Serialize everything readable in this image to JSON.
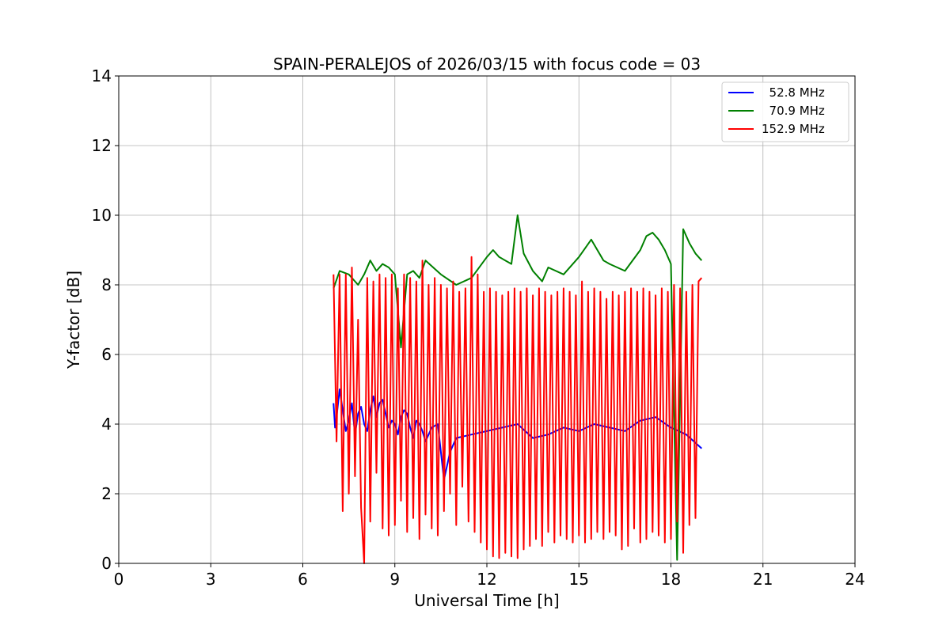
{
  "chart_data": {
    "type": "line",
    "title": "SPAIN-PERALEJOS of 2026/03/15 with focus code = 03",
    "xlabel": "Universal Time [h]",
    "ylabel": "Y-factor [dB]",
    "xlim": [
      0,
      24
    ],
    "ylim": [
      0,
      14
    ],
    "xticks": [
      0,
      3,
      6,
      9,
      12,
      15,
      18,
      21,
      24
    ],
    "yticks": [
      0,
      2,
      4,
      6,
      8,
      10,
      12,
      14
    ],
    "grid": true,
    "legend_position": "top-right",
    "series": [
      {
        "name": "52.8 MHz",
        "label": "  52.8 MHz",
        "color": "#0000ff",
        "x": [
          7.0,
          7.05,
          7.1,
          7.2,
          7.3,
          7.4,
          7.5,
          7.6,
          7.7,
          7.8,
          7.9,
          8.0,
          8.1,
          8.2,
          8.3,
          8.4,
          8.5,
          8.6,
          8.7,
          8.8,
          8.9,
          9.0,
          9.1,
          9.2,
          9.3,
          9.4,
          9.5,
          9.6,
          9.7,
          9.8,
          9.9,
          10.0,
          10.2,
          10.4,
          10.6,
          10.8,
          11.0,
          11.5,
          12.0,
          12.5,
          13.0,
          13.5,
          14.0,
          14.5,
          15.0,
          15.5,
          16.0,
          16.5,
          17.0,
          17.5,
          18.0,
          18.5,
          19.0
        ],
        "y": [
          4.6,
          3.9,
          4.2,
          5.0,
          4.4,
          3.8,
          4.1,
          4.6,
          3.7,
          4.3,
          4.5,
          4.0,
          3.8,
          4.4,
          4.8,
          4.2,
          4.6,
          4.7,
          4.3,
          3.9,
          4.1,
          4.0,
          3.7,
          4.2,
          4.4,
          4.3,
          3.9,
          3.6,
          4.1,
          4.0,
          3.8,
          3.5,
          3.9,
          4.0,
          2.4,
          3.2,
          3.6,
          3.7,
          3.8,
          3.9,
          4.0,
          3.6,
          3.7,
          3.9,
          3.8,
          4.0,
          3.9,
          3.8,
          4.1,
          4.2,
          3.9,
          3.7,
          3.3
        ]
      },
      {
        "name": "70.9 MHz",
        "label": "  70.9 MHz",
        "color": "#008000",
        "x": [
          7.0,
          7.2,
          7.5,
          7.8,
          8.0,
          8.2,
          8.4,
          8.6,
          8.8,
          9.0,
          9.2,
          9.4,
          9.6,
          9.8,
          10.0,
          10.5,
          11.0,
          11.5,
          12.0,
          12.2,
          12.4,
          12.6,
          12.8,
          13.0,
          13.2,
          13.5,
          13.8,
          14.0,
          14.5,
          15.0,
          15.4,
          15.8,
          16.0,
          16.5,
          17.0,
          17.2,
          17.4,
          17.6,
          17.8,
          18.0,
          18.2,
          18.4,
          18.6,
          18.8,
          19.0
        ],
        "y": [
          7.9,
          8.4,
          8.3,
          8.0,
          8.3,
          8.7,
          8.4,
          8.6,
          8.5,
          8.3,
          6.2,
          8.3,
          8.4,
          8.2,
          8.7,
          8.3,
          8.0,
          8.2,
          8.8,
          9.0,
          8.8,
          8.7,
          8.6,
          10.0,
          8.9,
          8.4,
          8.1,
          8.5,
          8.3,
          8.8,
          9.3,
          8.7,
          8.6,
          8.4,
          9.0,
          9.4,
          9.5,
          9.3,
          9.0,
          8.6,
          0.1,
          9.6,
          9.2,
          8.9,
          8.7
        ]
      },
      {
        "name": "152.9 MHz",
        "label": "152.9 MHz",
        "color": "#ff0000",
        "x": [
          7.0,
          7.1,
          7.2,
          7.3,
          7.4,
          7.5,
          7.6,
          7.7,
          7.8,
          7.9,
          8.0,
          8.1,
          8.2,
          8.3,
          8.4,
          8.5,
          8.6,
          8.7,
          8.8,
          8.9,
          9.0,
          9.1,
          9.2,
          9.3,
          9.4,
          9.5,
          9.6,
          9.7,
          9.8,
          9.9,
          10.0,
          10.1,
          10.2,
          10.3,
          10.4,
          10.5,
          10.6,
          10.7,
          10.8,
          10.9,
          11.0,
          11.1,
          11.2,
          11.3,
          11.4,
          11.5,
          11.6,
          11.7,
          11.8,
          11.9,
          12.0,
          12.1,
          12.2,
          12.3,
          12.4,
          12.5,
          12.6,
          12.7,
          12.8,
          12.9,
          13.0,
          13.1,
          13.2,
          13.3,
          13.4,
          13.5,
          13.6,
          13.7,
          13.8,
          13.9,
          14.0,
          14.1,
          14.2,
          14.3,
          14.4,
          14.5,
          14.6,
          14.7,
          14.8,
          14.9,
          15.0,
          15.1,
          15.2,
          15.3,
          15.4,
          15.5,
          15.6,
          15.7,
          15.8,
          15.9,
          16.0,
          16.1,
          16.2,
          16.3,
          16.4,
          16.5,
          16.6,
          16.7,
          16.8,
          16.9,
          17.0,
          17.1,
          17.2,
          17.3,
          17.4,
          17.5,
          17.6,
          17.7,
          17.8,
          17.9,
          18.0,
          18.1,
          18.2,
          18.3,
          18.4,
          18.5,
          18.6,
          18.7,
          18.8,
          18.9,
          19.0
        ],
        "y": [
          8.3,
          3.5,
          8.3,
          1.5,
          8.3,
          2.0,
          8.5,
          2.5,
          7.0,
          1.6,
          0.0,
          8.2,
          1.2,
          8.1,
          2.6,
          8.3,
          1.0,
          8.2,
          0.8,
          8.3,
          1.1,
          7.9,
          1.8,
          8.3,
          0.9,
          8.2,
          1.3,
          8.1,
          0.7,
          8.7,
          1.4,
          8.0,
          1.0,
          8.2,
          0.8,
          8.0,
          1.5,
          7.9,
          2.0,
          8.1,
          1.1,
          7.8,
          2.2,
          7.9,
          1.2,
          8.8,
          0.9,
          8.3,
          0.6,
          7.8,
          0.4,
          7.9,
          0.2,
          7.8,
          0.15,
          7.7,
          0.3,
          7.8,
          0.2,
          7.9,
          0.15,
          7.8,
          0.4,
          7.9,
          0.5,
          7.7,
          0.7,
          7.9,
          0.5,
          7.8,
          0.9,
          7.7,
          0.6,
          7.8,
          0.8,
          7.9,
          0.7,
          7.8,
          0.6,
          7.7,
          0.8,
          8.1,
          0.6,
          7.8,
          0.7,
          7.9,
          0.9,
          7.8,
          0.7,
          7.6,
          0.9,
          7.8,
          0.8,
          7.7,
          0.4,
          7.8,
          0.5,
          7.9,
          1.0,
          7.8,
          0.6,
          7.9,
          0.7,
          7.8,
          0.9,
          7.7,
          0.8,
          7.9,
          0.6,
          7.8,
          0.7,
          8.0,
          1.2,
          7.9,
          0.3,
          7.8,
          1.1,
          8.0,
          1.3,
          8.1,
          8.2
        ]
      }
    ]
  }
}
